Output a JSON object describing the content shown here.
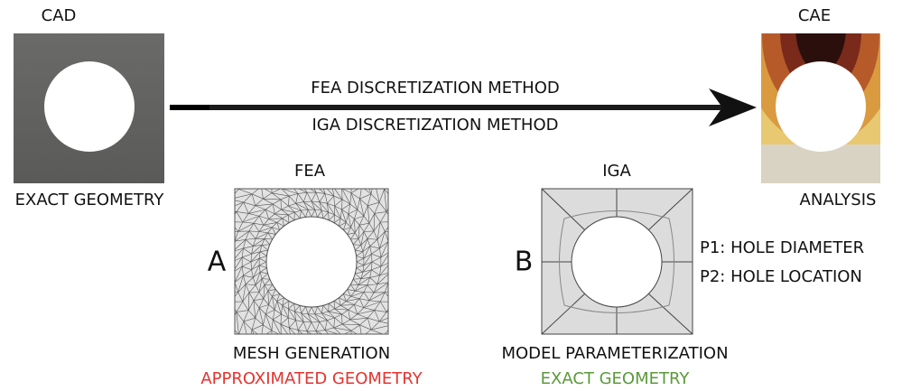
{
  "cad": {
    "label": "CAD",
    "caption": "EXACT GEOMETRY"
  },
  "cae": {
    "label": "CAE",
    "caption": "ANALYSIS"
  },
  "arrow": {
    "top": "FEA DISCRETIZATION METHOD",
    "bottom": "IGA DISCRETIZATION METHOD"
  },
  "fea": {
    "label": "FEA",
    "letter": "A",
    "caption": "MESH GENERATION",
    "note": "APPROXIMATED GEOMETRY"
  },
  "iga": {
    "label": "IGA",
    "letter": "B",
    "caption": "MODEL PARAMETERIZATION",
    "note": "EXACT GEOMETRY",
    "params": [
      "P1: HOLE DIAMETER",
      "P2: HOLE LOCATION"
    ]
  }
}
